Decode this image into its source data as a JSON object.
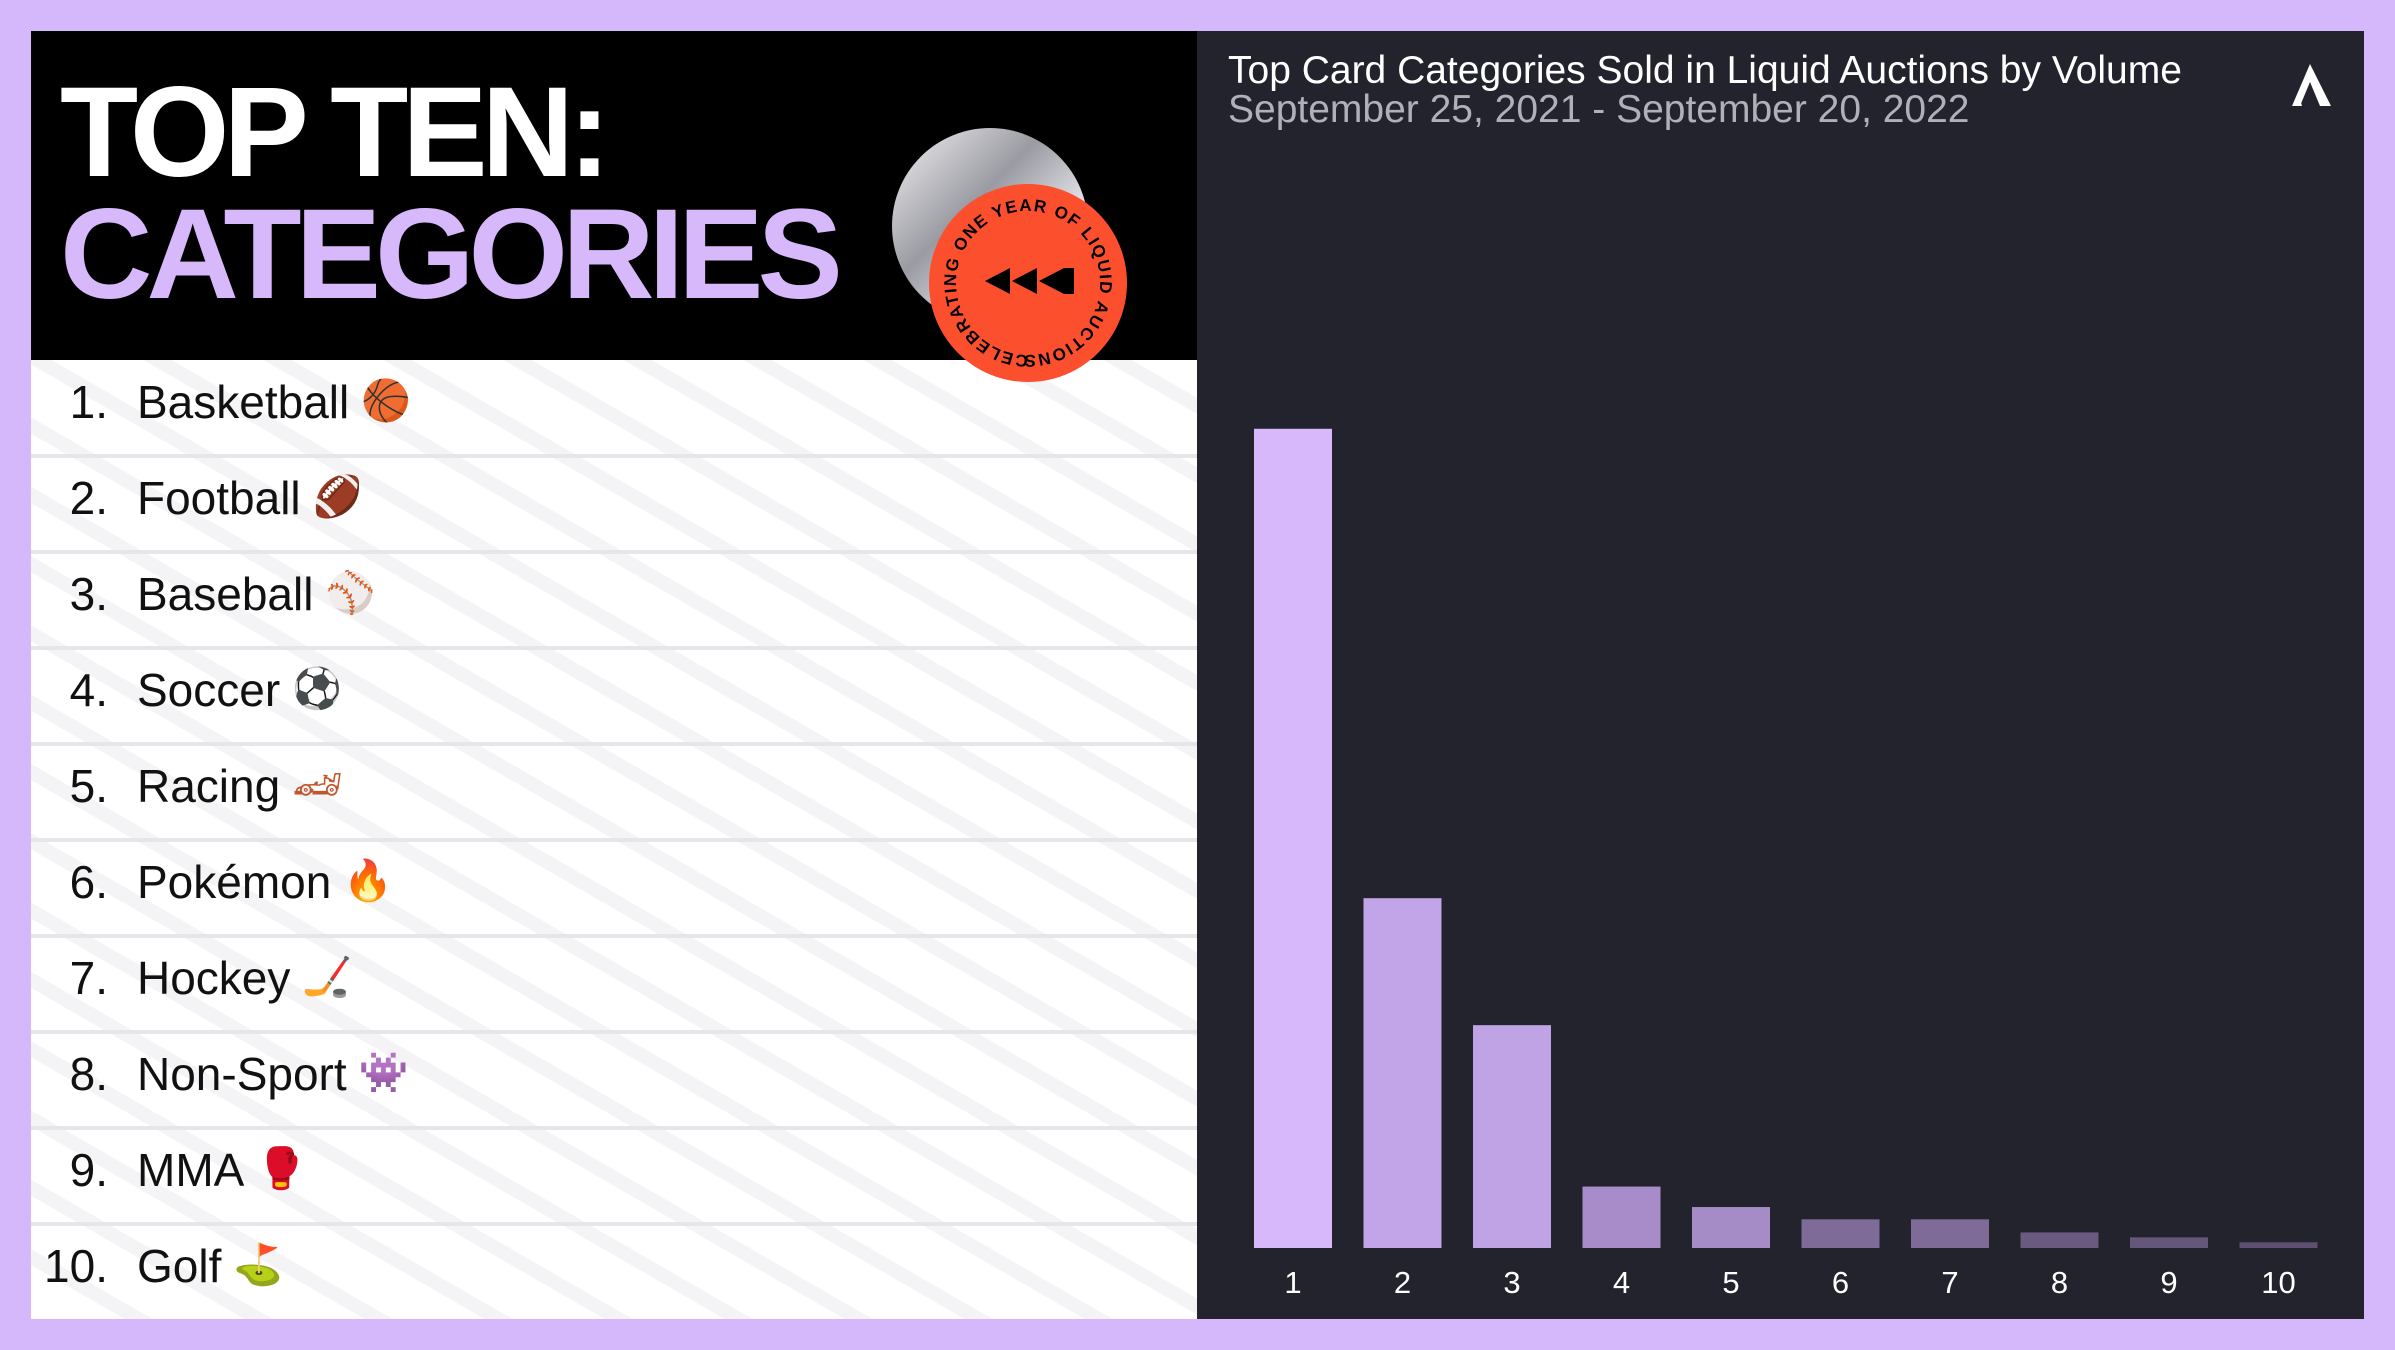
{
  "header": {
    "title_line1": "TOP TEN:",
    "title_line2": "CATEGORIES",
    "badge": "CELEBRATING ONE YEAR OF LIQUID AUCTIONS •"
  },
  "list": [
    {
      "rank": "1.",
      "name": "Basketball",
      "icon": "🏀"
    },
    {
      "rank": "2.",
      "name": "Football",
      "icon": "🏈"
    },
    {
      "rank": "3.",
      "name": "Baseball",
      "icon": "⚾"
    },
    {
      "rank": "4.",
      "name": "Soccer",
      "icon": "⚽"
    },
    {
      "rank": "5.",
      "name": "Racing",
      "icon": "🏎"
    },
    {
      "rank": "6.",
      "name": "Pokémon",
      "icon": "🔥"
    },
    {
      "rank": "7.",
      "name": "Hockey",
      "icon": "🏒"
    },
    {
      "rank": "8.",
      "name": "Non-Sport",
      "icon": "👾"
    },
    {
      "rank": "9.",
      "name": "MMA",
      "icon": "🥊"
    },
    {
      "rank": "10.",
      "name": "Golf",
      "icon": "⛳"
    }
  ],
  "chart_data": {
    "type": "bar",
    "title": "Top Card Categories Sold in Liquid Auctions by Volume",
    "subtitle": "September 25, 2021 - September 20, 2022",
    "categories": [
      "1",
      "2",
      "3",
      "4",
      "5",
      "6",
      "7",
      "8",
      "9",
      "10"
    ],
    "values": [
      100,
      42.7,
      27.2,
      7.5,
      5.0,
      3.5,
      3.5,
      1.9,
      1.3,
      0.7
    ],
    "colors": [
      "#d7b8fb",
      "#c2a4e8",
      "#c0a3e4",
      "#a88cca",
      "#a68cc6",
      "#7e6b97",
      "#7e6b97",
      "#6a5a80",
      "#65567b",
      "#5c4f70"
    ],
    "ylim": [
      0,
      130
    ]
  }
}
